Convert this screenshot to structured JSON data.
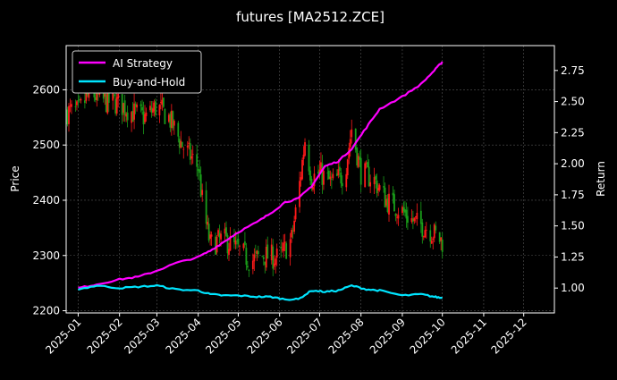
{
  "chart_data": {
    "type": "line",
    "title": "futures [MA2512.ZCE]",
    "ylabel_left": "Price",
    "ylabel_right": "Return",
    "xlabel": "",
    "x_tick_labels": [
      "2025-01",
      "2025-02",
      "2025-03",
      "2025-04",
      "2025-05",
      "2025-06",
      "2025-07",
      "2025-08",
      "2025-09",
      "2025-10",
      "2025-11",
      "2025-12"
    ],
    "xlim": [
      "2024-12-23",
      "2025-12-24"
    ],
    "ylim_left": [
      2196,
      2680
    ],
    "yticks_left": [
      2200,
      2300,
      2400,
      2500,
      2600
    ],
    "ylim_right": [
      0.8,
      2.95
    ],
    "yticks_right": [
      1.0,
      1.25,
      1.5,
      1.75,
      2.0,
      2.25,
      2.5,
      2.75
    ],
    "grid": true,
    "legend_position": "top-left",
    "price_series": {
      "name": "",
      "style": "candlestick",
      "up_color": "#ff1a1a",
      "down_color": "#1a9e1a",
      "x": [
        "2025-01-01",
        "2025-01-10",
        "2025-01-20",
        "2025-02-01",
        "2025-02-10",
        "2025-02-20",
        "2025-03-01",
        "2025-03-10",
        "2025-03-20",
        "2025-04-01",
        "2025-04-05",
        "2025-04-10",
        "2025-04-20",
        "2025-05-01",
        "2025-05-10",
        "2025-05-20",
        "2025-06-01",
        "2025-06-10",
        "2025-06-15",
        "2025-06-20",
        "2025-06-25",
        "2025-07-01",
        "2025-07-10",
        "2025-07-20",
        "2025-07-25",
        "2025-08-01",
        "2025-08-10",
        "2025-08-20",
        "2025-09-01",
        "2025-09-10",
        "2025-09-20",
        "2025-10-01"
      ],
      "close": [
        2560,
        2595,
        2580,
        2575,
        2560,
        2550,
        2570,
        2550,
        2500,
        2460,
        2380,
        2320,
        2330,
        2310,
        2290,
        2300,
        2295,
        2330,
        2410,
        2510,
        2440,
        2450,
        2430,
        2450,
        2530,
        2450,
        2440,
        2400,
        2380,
        2360,
        2350,
        2325
      ]
    },
    "series": [
      {
        "name": "AI Strategy",
        "color": "#ff00ff",
        "x": [
          "2025-01-01",
          "2025-01-15",
          "2025-02-01",
          "2025-02-15",
          "2025-03-01",
          "2025-03-15",
          "2025-04-01",
          "2025-04-10",
          "2025-04-20",
          "2025-05-01",
          "2025-05-15",
          "2025-05-25",
          "2025-06-05",
          "2025-06-15",
          "2025-06-25",
          "2025-07-05",
          "2025-07-15",
          "2025-07-25",
          "2025-08-05",
          "2025-08-15",
          "2025-09-01",
          "2025-09-15",
          "2025-09-25",
          "2025-10-01"
        ],
        "values": [
          1.0,
          1.03,
          1.07,
          1.09,
          1.14,
          1.2,
          1.25,
          1.3,
          1.37,
          1.45,
          1.53,
          1.6,
          1.69,
          1.72,
          1.82,
          1.98,
          2.02,
          2.12,
          2.29,
          2.44,
          2.54,
          2.64,
          2.75,
          2.82
        ]
      },
      {
        "name": "Buy-and-Hold",
        "color": "#00e5ff",
        "x": [
          "2025-01-01",
          "2025-01-15",
          "2025-02-01",
          "2025-02-15",
          "2025-03-01",
          "2025-03-15",
          "2025-04-01",
          "2025-04-10",
          "2025-04-20",
          "2025-05-01",
          "2025-05-15",
          "2025-05-25",
          "2025-06-05",
          "2025-06-15",
          "2025-06-25",
          "2025-07-05",
          "2025-07-15",
          "2025-07-25",
          "2025-08-05",
          "2025-08-15",
          "2025-09-01",
          "2025-09-15",
          "2025-09-25",
          "2025-10-01"
        ],
        "values": [
          0.99,
          1.02,
          1.0,
          1.01,
          1.02,
          0.99,
          0.98,
          0.95,
          0.94,
          0.94,
          0.93,
          0.93,
          0.91,
          0.91,
          0.98,
          0.97,
          0.98,
          1.02,
          0.99,
          0.98,
          0.94,
          0.95,
          0.93,
          0.92
        ]
      }
    ]
  }
}
